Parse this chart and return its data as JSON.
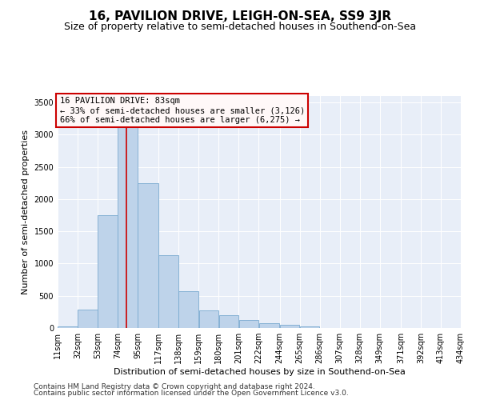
{
  "title": "16, PAVILION DRIVE, LEIGH-ON-SEA, SS9 3JR",
  "subtitle": "Size of property relative to semi-detached houses in Southend-on-Sea",
  "xlabel": "Distribution of semi-detached houses by size in Southend-on-Sea",
  "ylabel": "Number of semi-detached properties",
  "footer_line1": "Contains HM Land Registry data © Crown copyright and database right 2024.",
  "footer_line2": "Contains public sector information licensed under the Open Government Licence v3.0.",
  "annotation_title": "16 PAVILION DRIVE: 83sqm",
  "annotation_line1": "← 33% of semi-detached houses are smaller (3,126)",
  "annotation_line2": "66% of semi-detached houses are larger (6,275) →",
  "bin_edges": [
    11,
    32,
    53,
    74,
    95,
    117,
    138,
    159,
    180,
    201,
    222,
    244,
    265,
    286,
    307,
    328,
    349,
    371,
    392,
    413,
    434
  ],
  "bar_heights": [
    20,
    290,
    1750,
    3250,
    2250,
    1125,
    565,
    270,
    200,
    130,
    80,
    55,
    30,
    0,
    0,
    0,
    0,
    0,
    0,
    0
  ],
  "bar_color": "#bed3ea",
  "bar_edge_color": "#7aaad0",
  "vline_color": "#cc0000",
  "vline_x": 83,
  "annotation_box_facecolor": "#fff8f8",
  "annotation_box_edgecolor": "#cc0000",
  "background_color": "#e8eef8",
  "ylim": [
    0,
    3600
  ],
  "yticks": [
    0,
    500,
    1000,
    1500,
    2000,
    2500,
    3000,
    3500
  ],
  "title_fontsize": 11,
  "subtitle_fontsize": 9,
  "ylabel_fontsize": 8,
  "xlabel_fontsize": 8,
  "tick_fontsize": 7,
  "footer_fontsize": 6.5
}
